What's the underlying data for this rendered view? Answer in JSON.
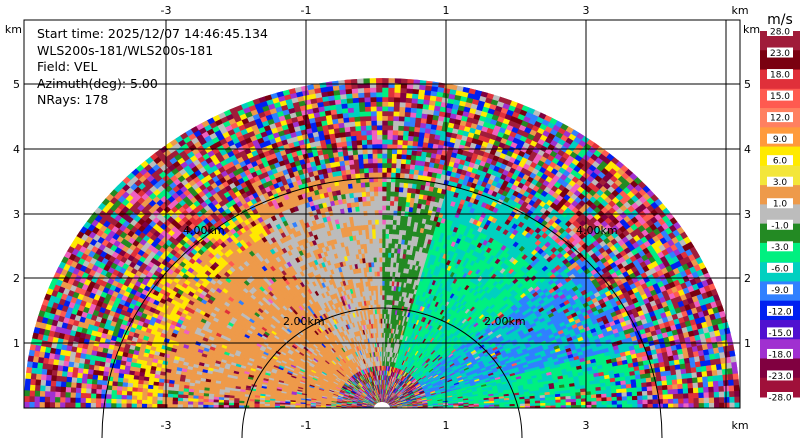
{
  "info": {
    "start_time": "Start time: 2025/12/07 14:46:45.134",
    "instrument": "WLS200s-181/WLS200s-181",
    "field": "Field: VEL",
    "azimuth": "Azimuth(deg): 5.00",
    "nrays": "NRays: 178"
  },
  "axes": {
    "x_ticks": [
      "-3",
      "-1",
      "1",
      "3"
    ],
    "y_ticks": [
      "1",
      "2",
      "3",
      "4",
      "5"
    ],
    "x_unit": "km",
    "y_unit": "km"
  },
  "rings": {
    "inner_left": "2.00km",
    "inner_right": "2.00km",
    "outer_left": "4.00km",
    "outer_right": "4.00km"
  },
  "colorbar": {
    "unit": "m/s",
    "labels": [
      "28.0",
      "23.0",
      "18.0",
      "15.0",
      "12.0",
      "9.0",
      "6.0",
      "3.0",
      "1.0",
      "-1.0",
      "-3.0",
      "-6.0",
      "-9.0",
      "-12.0",
      "-15.0",
      "-18.0",
      "-23.0",
      "-28.0"
    ],
    "colors": [
      "#a01c3a",
      "#7a0010",
      "#e0303a",
      "#ff5a50",
      "#ff8060",
      "#ff9a3c",
      "#ffea00",
      "#f3e63a",
      "#ee9a4a",
      "#bcbcbc",
      "#238a23",
      "#00f080",
      "#00d0c0",
      "#3080ff",
      "#0020f0",
      "#5010d0",
      "#a030d0",
      "#800040",
      "#a0103a"
    ]
  }
}
